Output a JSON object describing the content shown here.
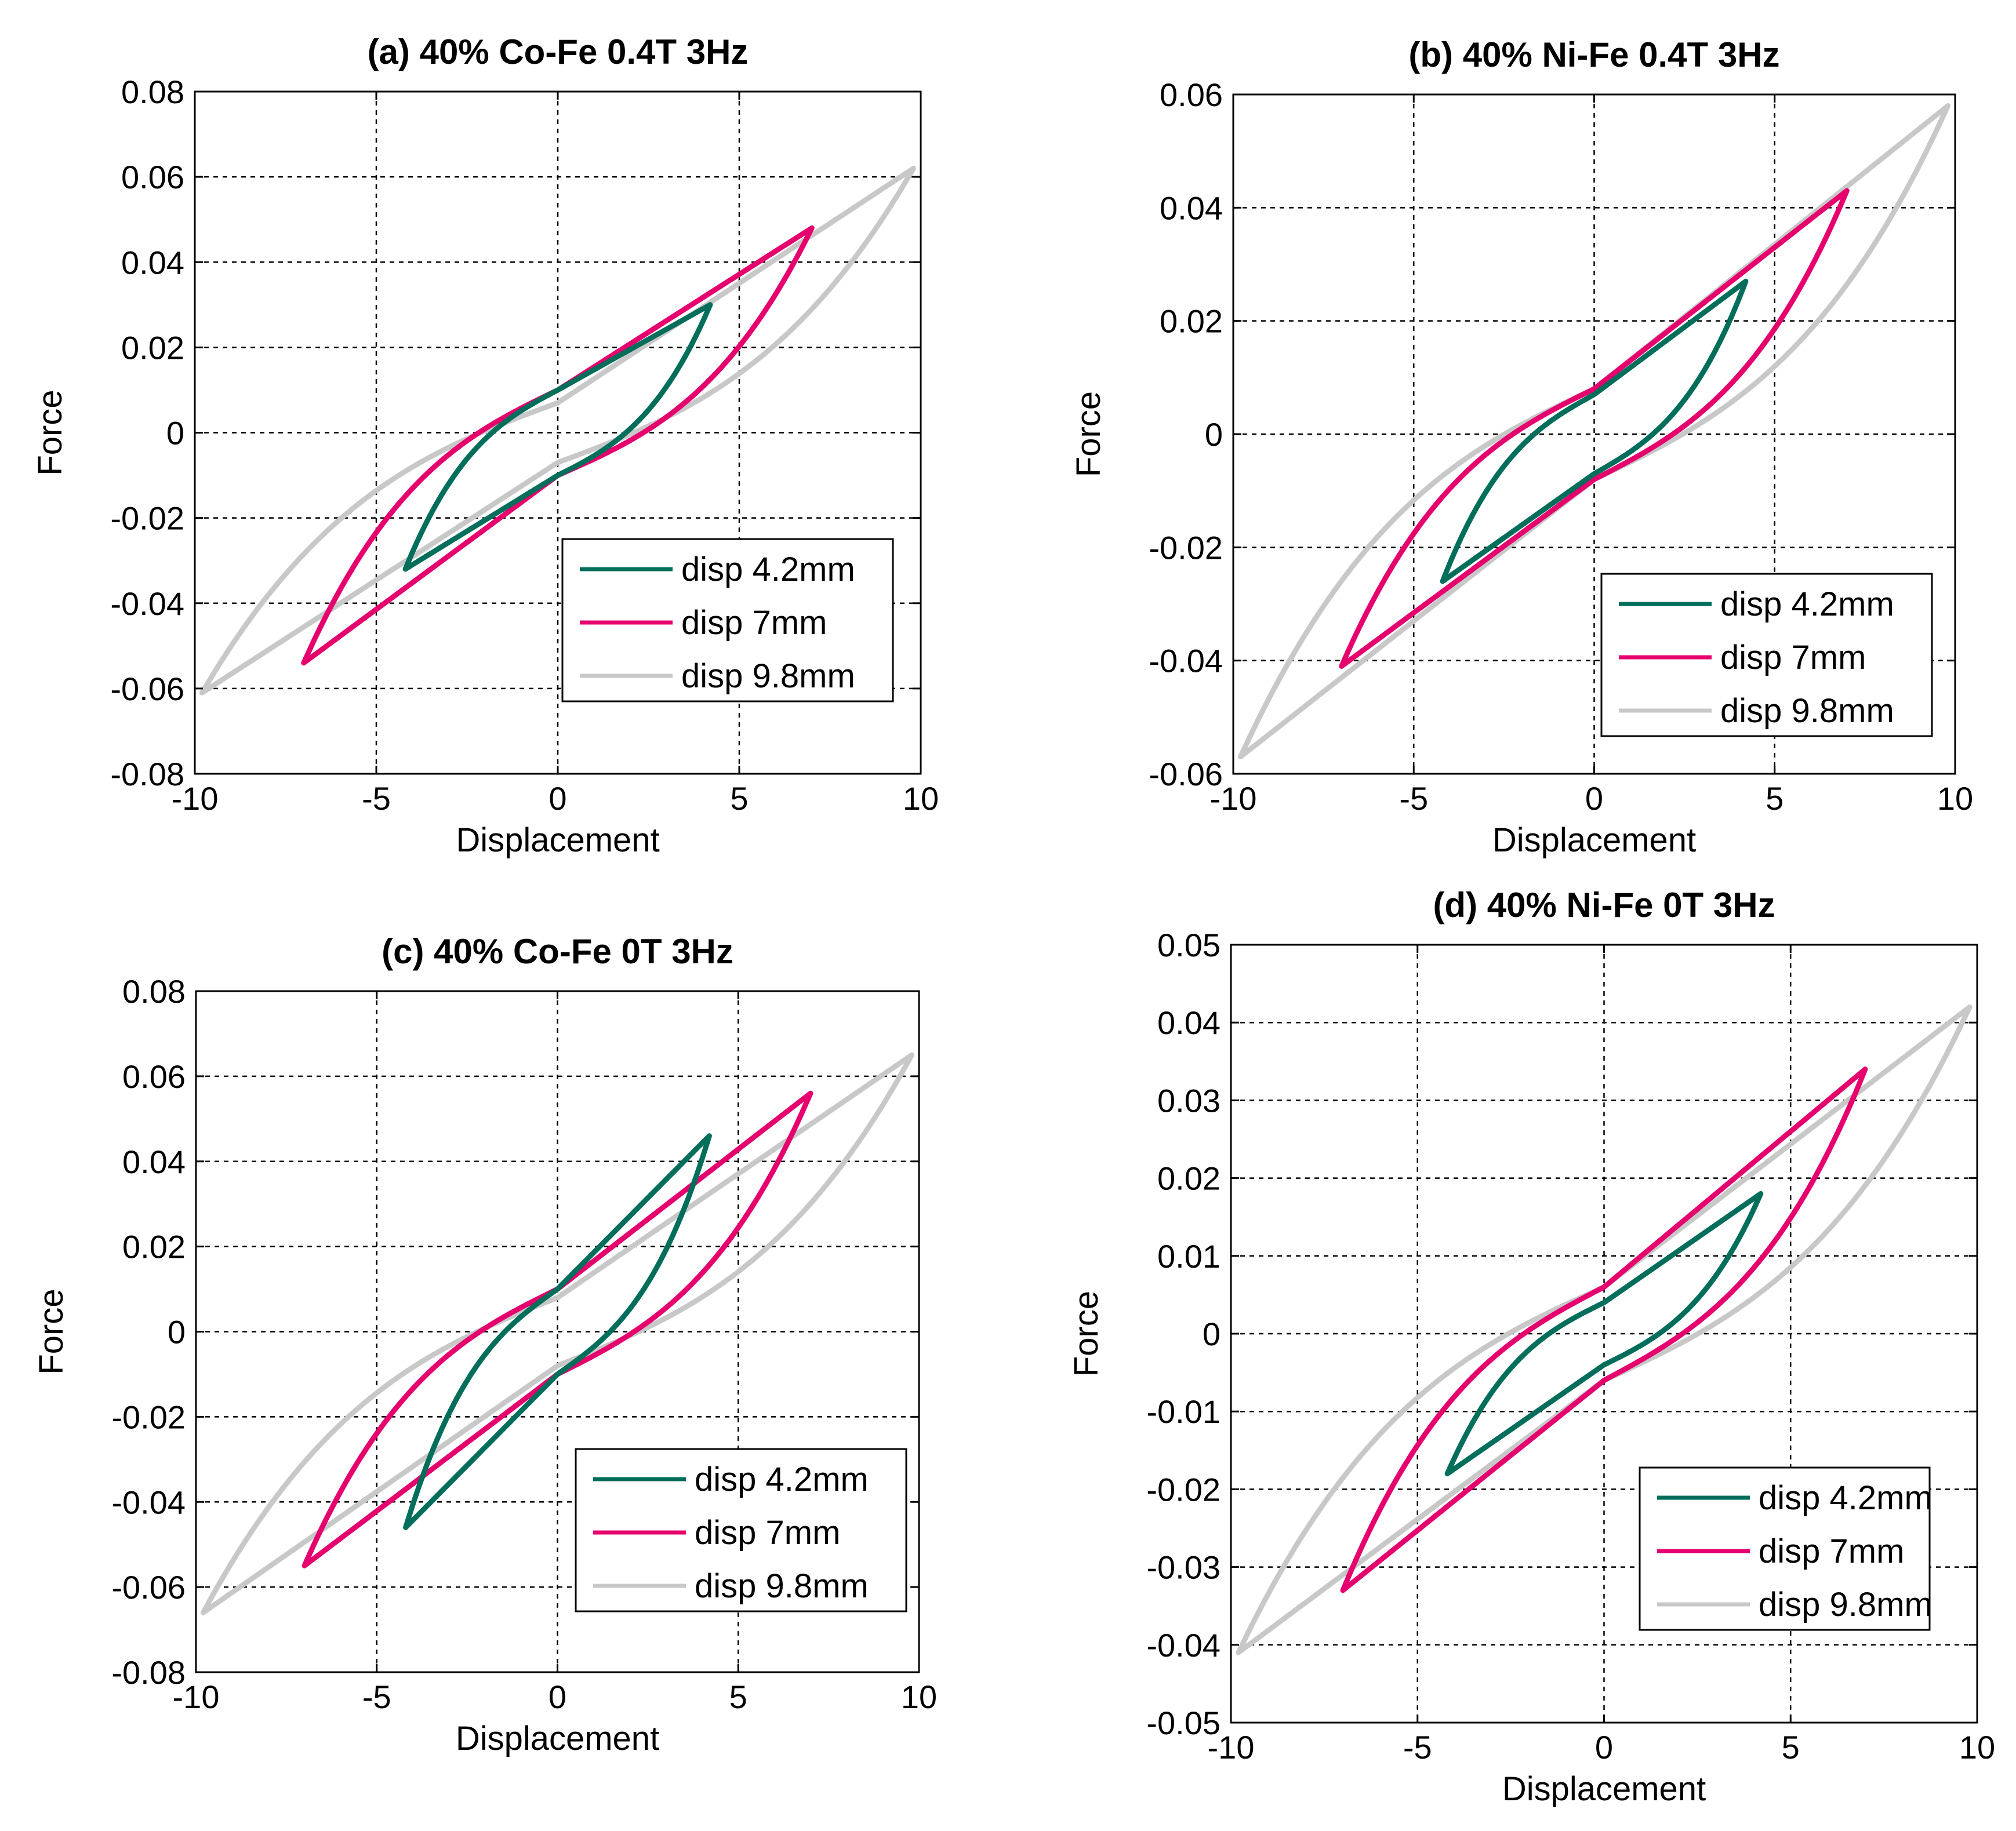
{
  "chart_data": [
    {
      "type": "line",
      "title": "(a) 40% Co-Fe  0.4T 3Hz",
      "xlabel": "Displacement",
      "ylabel": "Force",
      "xlim": [
        -10,
        10
      ],
      "ylim": [
        -0.08,
        0.08
      ],
      "xticks": [
        -10,
        -5,
        0,
        5,
        10
      ],
      "yticks": [
        -0.08,
        -0.06,
        -0.04,
        -0.02,
        0,
        0.02,
        0.04,
        0.06,
        0.08
      ],
      "xtick_labels": [
        "-10",
        "-5",
        "0",
        "5",
        "10"
      ],
      "ytick_labels": [
        "-0.08",
        "-0.06",
        "-0.04",
        "-0.02",
        "0",
        "0.02",
        "0.04",
        "0.06",
        "0.08"
      ],
      "grid": true,
      "legend_position": "bottom-right",
      "series": [
        {
          "name": "disp 4.2mm",
          "color": "#006e5a",
          "amplitude": 4.2,
          "force_at_max": 0.03,
          "force_at_min": -0.032,
          "upper_intercept": 0.01,
          "lower_intercept": -0.01
        },
        {
          "name": "disp 7mm",
          "color": "#e5006d",
          "amplitude": 7,
          "force_at_max": 0.048,
          "force_at_min": -0.054,
          "upper_intercept": 0.01,
          "lower_intercept": -0.01
        },
        {
          "name": "disp 9.8mm",
          "color": "#c8c8c8",
          "amplitude": 9.8,
          "force_at_max": 0.062,
          "force_at_min": -0.061,
          "upper_intercept": 0.007,
          "lower_intercept": -0.007
        }
      ]
    },
    {
      "type": "line",
      "title": "(b) 40% Ni-Fe  0.4T 3Hz",
      "xlabel": "Displacement",
      "ylabel": "Force",
      "xlim": [
        -10,
        10
      ],
      "ylim": [
        -0.06,
        0.06
      ],
      "xticks": [
        -10,
        -5,
        0,
        5,
        10
      ],
      "yticks": [
        -0.06,
        -0.04,
        -0.02,
        0,
        0.02,
        0.04,
        0.06
      ],
      "xtick_labels": [
        "-10",
        "-5",
        "0",
        "5",
        "10"
      ],
      "ytick_labels": [
        "-0.06",
        "-0.04",
        "-0.02",
        "0",
        "0.02",
        "0.04",
        "0.06"
      ],
      "grid": true,
      "legend_position": "bottom-right",
      "series": [
        {
          "name": "disp 4.2mm",
          "color": "#006e5a",
          "amplitude": 4.2,
          "force_at_max": 0.027,
          "force_at_min": -0.026,
          "upper_intercept": 0.007,
          "lower_intercept": -0.007
        },
        {
          "name": "disp 7mm",
          "color": "#e5006d",
          "amplitude": 7,
          "force_at_max": 0.043,
          "force_at_min": -0.041,
          "upper_intercept": 0.008,
          "lower_intercept": -0.008
        },
        {
          "name": "disp 9.8mm",
          "color": "#c8c8c8",
          "amplitude": 9.8,
          "force_at_max": 0.058,
          "force_at_min": -0.057,
          "upper_intercept": 0.008,
          "lower_intercept": -0.008
        }
      ]
    },
    {
      "type": "line",
      "title": "(c) 40% Co-Fe  0T 3Hz",
      "xlabel": "Displacement",
      "ylabel": "Force",
      "xlim": [
        -10,
        10
      ],
      "ylim": [
        -0.08,
        0.08
      ],
      "xticks": [
        -10,
        -5,
        0,
        5,
        10
      ],
      "yticks": [
        -0.08,
        -0.06,
        -0.04,
        -0.02,
        0,
        0.02,
        0.04,
        0.06,
        0.08
      ],
      "xtick_labels": [
        "-10",
        "-5",
        "0",
        "5",
        "10"
      ],
      "ytick_labels": [
        "-0.08",
        "-0.06",
        "-0.04",
        "-0.02",
        "0",
        "0.02",
        "0.04",
        "0.06",
        "0.08"
      ],
      "grid": true,
      "legend_position": "bottom-right",
      "series": [
        {
          "name": "disp 4.2mm",
          "color": "#006e5a",
          "amplitude": 4.2,
          "force_at_max": 0.046,
          "force_at_min": -0.046,
          "upper_intercept": 0.01,
          "lower_intercept": -0.01
        },
        {
          "name": "disp 7mm",
          "color": "#e5006d",
          "amplitude": 7,
          "force_at_max": 0.056,
          "force_at_min": -0.055,
          "upper_intercept": 0.01,
          "lower_intercept": -0.01
        },
        {
          "name": "disp 9.8mm",
          "color": "#c8c8c8",
          "amplitude": 9.8,
          "force_at_max": 0.065,
          "force_at_min": -0.066,
          "upper_intercept": 0.008,
          "lower_intercept": -0.008
        }
      ]
    },
    {
      "type": "line",
      "title": "(d) 40% Ni-Fe  0T 3Hz",
      "xlabel": "Displacement",
      "ylabel": "Force",
      "xlim": [
        -10,
        10
      ],
      "ylim": [
        -0.05,
        0.05
      ],
      "xticks": [
        -10,
        -5,
        0,
        5,
        10
      ],
      "yticks": [
        -0.05,
        -0.04,
        -0.03,
        -0.02,
        -0.01,
        0,
        0.01,
        0.02,
        0.03,
        0.04,
        0.05
      ],
      "xtick_labels": [
        "-10",
        "-5",
        "0",
        "5",
        "10"
      ],
      "ytick_labels": [
        "-0.05",
        "-0.04",
        "-0.03",
        "-0.02",
        "-0.01",
        "0",
        "0.01",
        "0.02",
        "0.03",
        "0.04",
        "0.05"
      ],
      "grid": true,
      "legend_position": "bottom-right",
      "series": [
        {
          "name": "disp 4.2mm",
          "color": "#006e5a",
          "amplitude": 4.2,
          "force_at_max": 0.018,
          "force_at_min": -0.018,
          "upper_intercept": 0.004,
          "lower_intercept": -0.004
        },
        {
          "name": "disp 7mm",
          "color": "#e5006d",
          "amplitude": 7,
          "force_at_max": 0.034,
          "force_at_min": -0.033,
          "upper_intercept": 0.006,
          "lower_intercept": -0.006
        },
        {
          "name": "disp 9.8mm",
          "color": "#c8c8c8",
          "amplitude": 9.8,
          "force_at_max": 0.042,
          "force_at_min": -0.041,
          "upper_intercept": 0.006,
          "lower_intercept": -0.006
        }
      ]
    }
  ]
}
